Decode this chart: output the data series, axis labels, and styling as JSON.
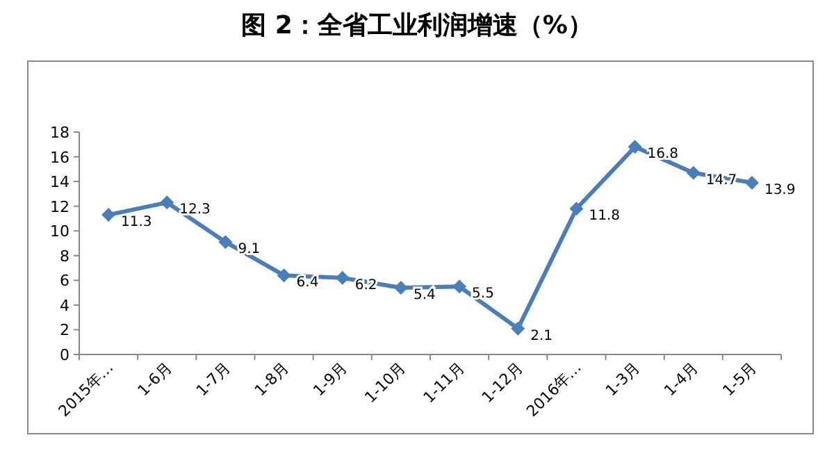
{
  "chart_data": {
    "type": "line",
    "title": "图 2：全省工业利润增速（%）",
    "categories": [
      "2015年…",
      "1-6月",
      "1-7月",
      "1-8月",
      "1-9月",
      "1-10月",
      "1-11月",
      "1-12月",
      "2016年…",
      "1-3月",
      "1-4月",
      "1-5月"
    ],
    "series": [
      {
        "color": "#4a7ebb",
        "values": [
          11.3,
          12.3,
          9.1,
          6.4,
          6.2,
          5.4,
          5.5,
          2.1,
          11.8,
          16.8,
          14.7,
          13.9
        ]
      }
    ],
    "ylim": [
      0,
      18
    ],
    "yticks": [
      0,
      2,
      4,
      6,
      8,
      10,
      12,
      14,
      16,
      18
    ],
    "grid": false,
    "marker": "diamond",
    "line_style": "solid",
    "data_labels": true
  }
}
